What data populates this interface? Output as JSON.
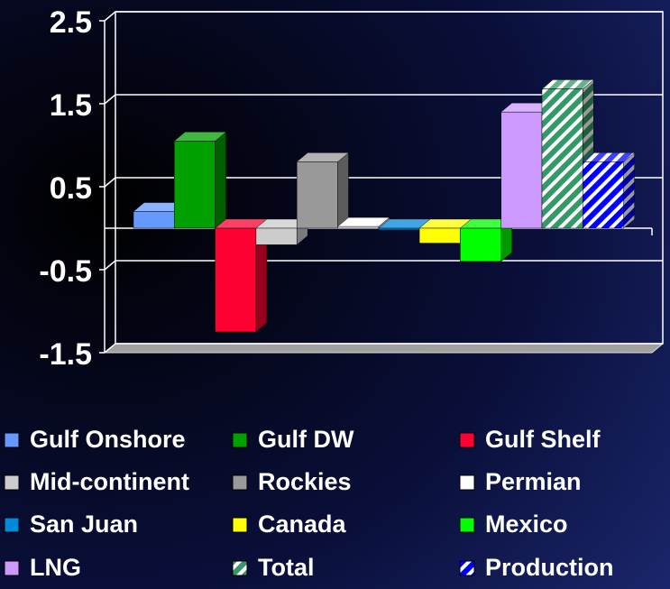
{
  "chart_data": {
    "type": "bar3d",
    "ylim": [
      -1.5,
      2.5
    ],
    "yticks": [
      -1.5,
      -0.5,
      0.5,
      1.5,
      2.5
    ],
    "grid": true,
    "series": [
      {
        "name": "Gulf Onshore",
        "color": "#6699ff",
        "values": [
          0.2
        ]
      },
      {
        "name": "Gulf DW",
        "color": "#00a000",
        "values": [
          1.05
        ]
      },
      {
        "name": "Gulf Shelf",
        "color": "#ff0033",
        "values": [
          -1.25
        ]
      },
      {
        "name": "Mid-continent",
        "color": "#cccccc",
        "values": [
          -0.2
        ]
      },
      {
        "name": "Rockies",
        "color": "#999999",
        "values": [
          0.8
        ]
      },
      {
        "name": "Permian",
        "color": "#ffffff",
        "values": [
          0.02
        ]
      },
      {
        "name": "San Juan",
        "color": "#0088dd",
        "values": [
          -0.02
        ]
      },
      {
        "name": "Canada",
        "color": "#ffff00",
        "values": [
          -0.18
        ]
      },
      {
        "name": "Mexico",
        "color": "#00ff00",
        "values": [
          -0.4
        ]
      },
      {
        "name": "LNG",
        "color": "#cc99ff",
        "values": [
          1.4
        ]
      },
      {
        "name": "Total",
        "color": "#339966",
        "pattern": "hatched",
        "values": [
          1.68
        ]
      },
      {
        "name": "Production",
        "color": "#0000ff",
        "pattern": "hatched",
        "values": [
          0.8
        ]
      }
    ]
  }
}
